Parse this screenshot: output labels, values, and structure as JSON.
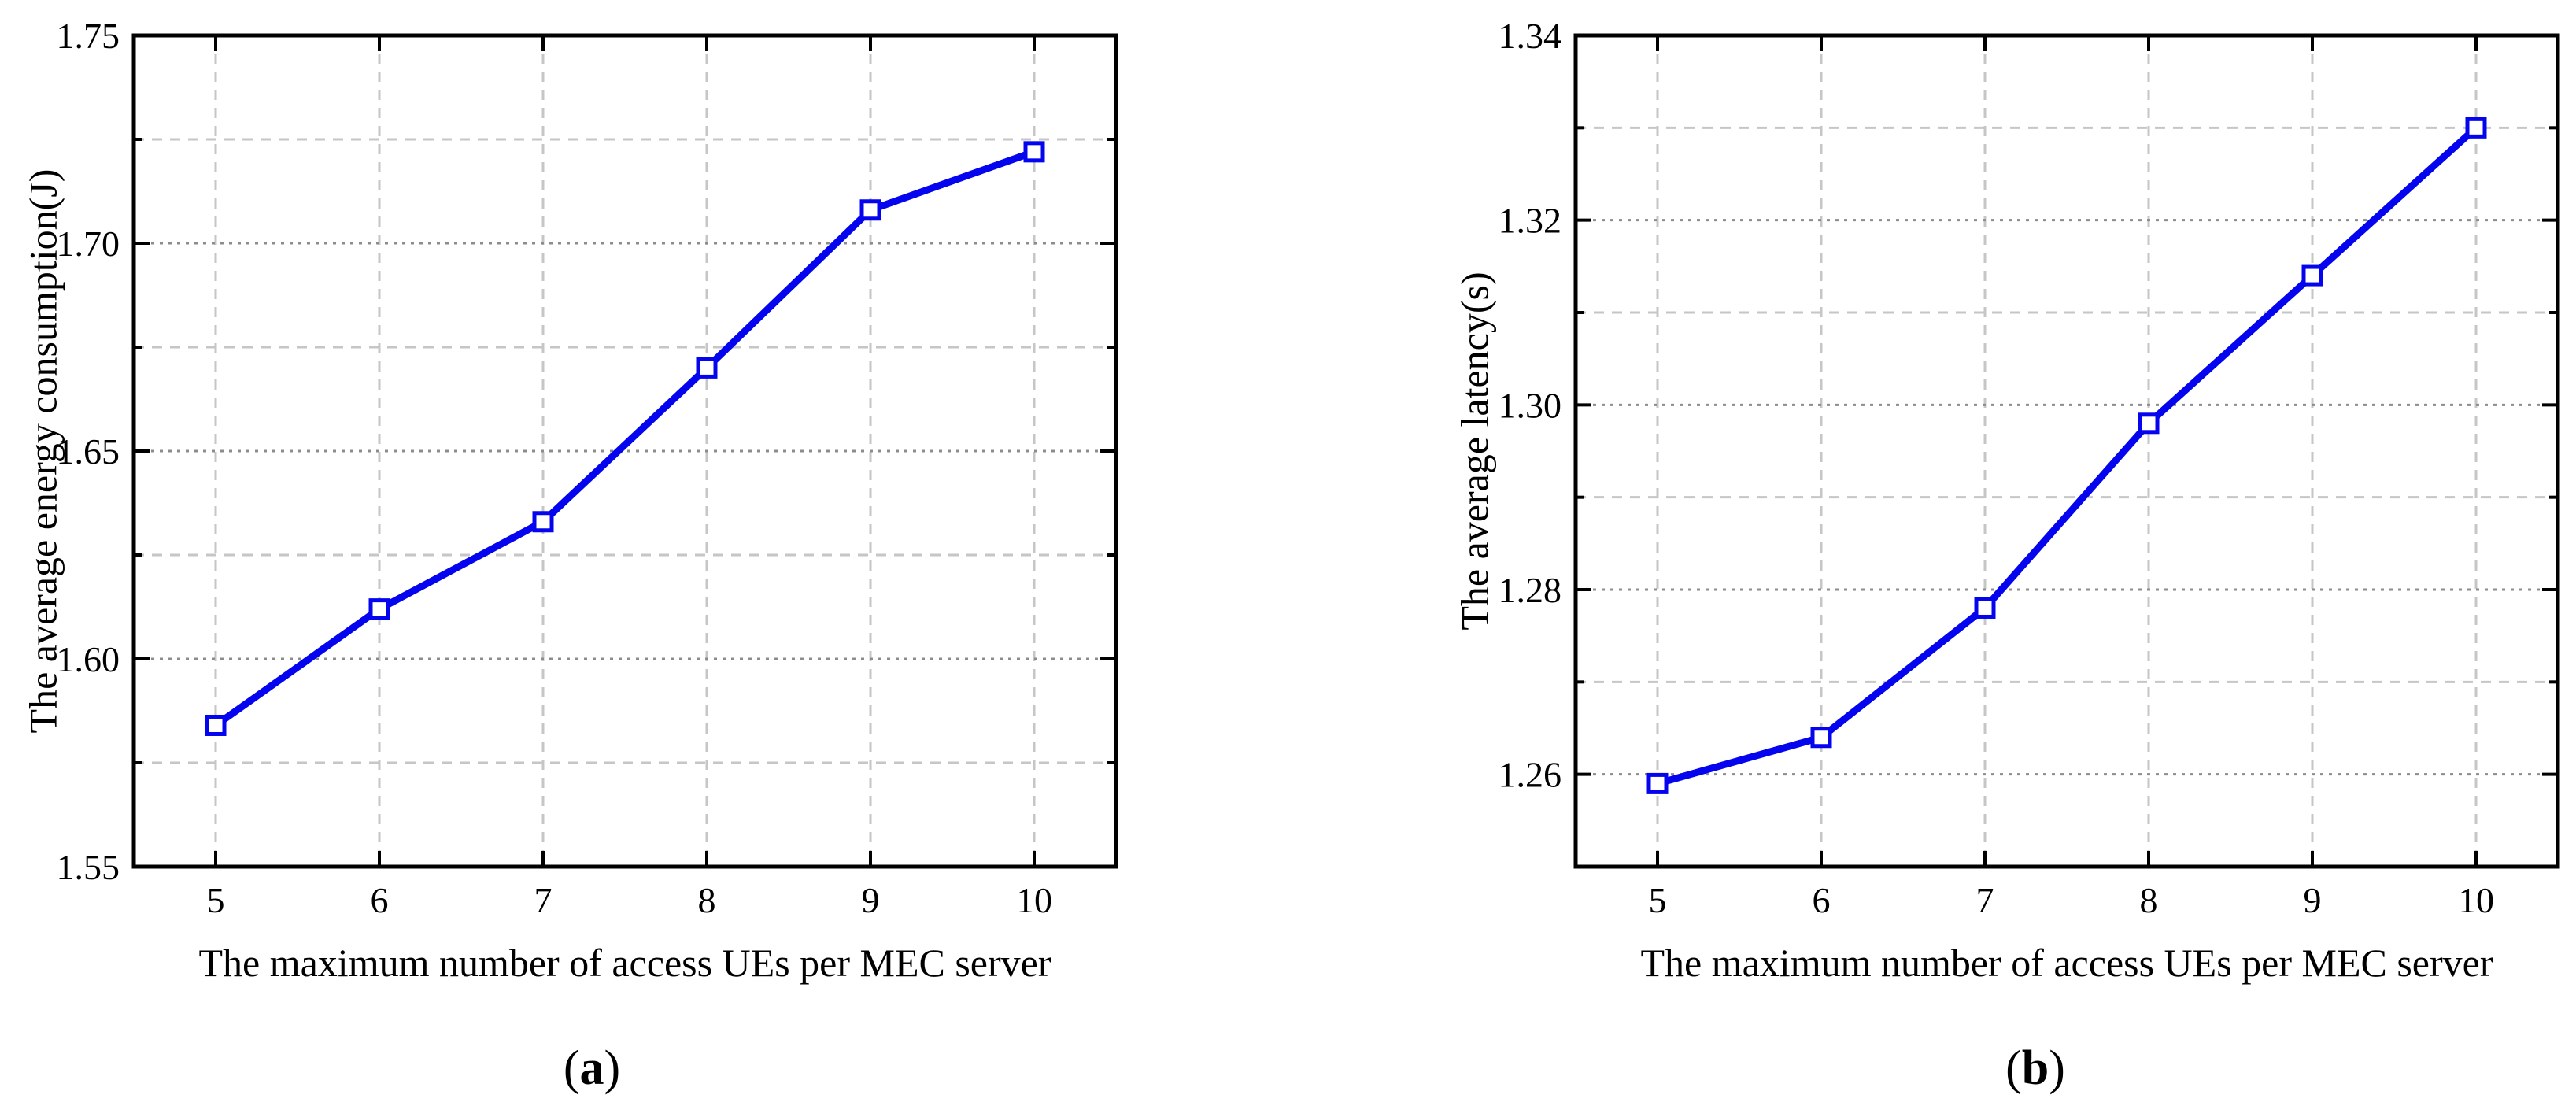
{
  "figure": {
    "background": "#ffffff",
    "colors": {
      "line": "#0404ee",
      "marker_fill": "#ffffff",
      "grid_minor": "#c6c6c6",
      "grid_major": "#8c8c8c",
      "axis": "#000000",
      "text": "#000000"
    }
  },
  "chart_data": [
    {
      "id": "a",
      "type": "line",
      "title": "",
      "xlabel": "The maximum number of access UEs per MEC server",
      "ylabel": "The average energy consumption(J)",
      "x": [
        5,
        6,
        7,
        8,
        9,
        10
      ],
      "y": [
        1.584,
        1.612,
        1.633,
        1.67,
        1.708,
        1.722
      ],
      "xlim": [
        4.5,
        10.5
      ],
      "ylim": [
        1.55,
        1.75
      ],
      "xticks": [
        5,
        6,
        7,
        8,
        9,
        10
      ],
      "xtick_labels": [
        "5",
        "6",
        "7",
        "8",
        "9",
        "10"
      ],
      "yticks_major": [
        1.55,
        1.6,
        1.65,
        1.7,
        1.75
      ],
      "ytick_labels": [
        "1.55",
        "1.60",
        "1.65",
        "1.70",
        "1.75"
      ],
      "yticks_minor": [
        1.575,
        1.625,
        1.675,
        1.725
      ],
      "grid": true,
      "legend": null,
      "marker": "open-square",
      "line_color": "#0404ee",
      "caption": {
        "open": "(",
        "letter": "a",
        "close": ")"
      }
    },
    {
      "id": "b",
      "type": "line",
      "title": "",
      "xlabel": "The maximum number of access UEs per MEC server",
      "ylabel": "The average latency(s)",
      "x": [
        5,
        6,
        7,
        8,
        9,
        10
      ],
      "y": [
        1.259,
        1.264,
        1.278,
        1.298,
        1.314,
        1.33
      ],
      "xlim": [
        4.5,
        10.5
      ],
      "ylim": [
        1.25,
        1.34
      ],
      "xticks": [
        5,
        6,
        7,
        8,
        9,
        10
      ],
      "xtick_labels": [
        "5",
        "6",
        "7",
        "8",
        "9",
        "10"
      ],
      "yticks_major": [
        1.26,
        1.28,
        1.3,
        1.32,
        1.34
      ],
      "ytick_labels": [
        "1.26",
        "1.28",
        "1.30",
        "1.32",
        "1.34"
      ],
      "yticks_minor": [
        1.27,
        1.29,
        1.31,
        1.33
      ],
      "grid": true,
      "legend": null,
      "marker": "open-square",
      "line_color": "#0404ee",
      "caption": {
        "open": "(",
        "letter": "b",
        "close": ")"
      }
    }
  ]
}
